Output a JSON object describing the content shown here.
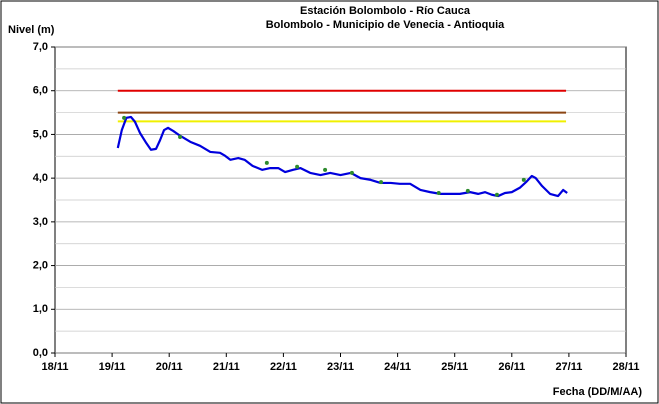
{
  "chart_data": {
    "type": "line",
    "title": "Estación Bolombolo - Río Cauca",
    "subtitle": "Bolombolo - Municipio de Venecia - Antioquia",
    "y_label": "Nivel (m)",
    "x_label": "Fecha (DD/M/AA)",
    "xlim": [
      18,
      28
    ],
    "xticks": [
      {
        "value": 18,
        "label": "18/11"
      },
      {
        "value": 19,
        "label": "19/11"
      },
      {
        "value": 20,
        "label": "20/11"
      },
      {
        "value": 21,
        "label": "21/11"
      },
      {
        "value": 22,
        "label": "22/11"
      },
      {
        "value": 23,
        "label": "23/11"
      },
      {
        "value": 24,
        "label": "24/11"
      },
      {
        "value": 25,
        "label": "25/11"
      },
      {
        "value": 26,
        "label": "26/11"
      },
      {
        "value": 27,
        "label": "27/11"
      },
      {
        "value": 28,
        "label": "28/11"
      }
    ],
    "ylim": [
      0,
      7
    ],
    "yticks": [
      {
        "value": 0,
        "label": "0,0"
      },
      {
        "value": 1,
        "label": "1,0"
      },
      {
        "value": 2,
        "label": "2,0"
      },
      {
        "value": 3,
        "label": "3,0"
      },
      {
        "value": 4,
        "label": "4,0"
      },
      {
        "value": 5,
        "label": "5,0"
      },
      {
        "value": 6,
        "label": "6,0"
      },
      {
        "value": 7,
        "label": "7,0"
      }
    ],
    "yminor": [
      0.5,
      1.5,
      2.5,
      3.5,
      4.5,
      5.5,
      6.5
    ],
    "grid": true,
    "reference_lines": [
      {
        "value": 6.0,
        "color": "#e00000",
        "x": [
          19.1,
          26.95
        ]
      },
      {
        "value": 5.5,
        "color": "#8b4513",
        "x": [
          19.1,
          26.95
        ]
      },
      {
        "value": 5.3,
        "color": "#f0f000",
        "x": [
          19.1,
          26.95
        ]
      }
    ],
    "series": [
      {
        "style": "line",
        "color": "#0000dd",
        "x": [
          19.1,
          19.17,
          19.25,
          19.33,
          19.4,
          19.49,
          19.6,
          19.68,
          19.77,
          19.84,
          19.91,
          19.98,
          20.07,
          20.19,
          20.37,
          20.54,
          20.72,
          20.89,
          20.98,
          21.07,
          21.21,
          21.32,
          21.46,
          21.63,
          21.77,
          21.91,
          22.03,
          22.17,
          22.3,
          22.47,
          22.65,
          22.82,
          23.0,
          23.18,
          23.35,
          23.53,
          23.7,
          23.88,
          24.04,
          24.22,
          24.4,
          24.57,
          24.75,
          24.92,
          25.09,
          25.27,
          25.41,
          25.53,
          25.65,
          25.76,
          25.88,
          26.0,
          26.14,
          26.25,
          26.35,
          26.42,
          26.53,
          26.67,
          26.81,
          26.9,
          26.97
        ],
        "values": [
          4.69,
          5.1,
          5.38,
          5.4,
          5.29,
          5.03,
          4.8,
          4.65,
          4.67,
          4.87,
          5.1,
          5.15,
          5.08,
          4.97,
          4.83,
          4.74,
          4.6,
          4.58,
          4.51,
          4.42,
          4.46,
          4.42,
          4.28,
          4.19,
          4.23,
          4.23,
          4.14,
          4.19,
          4.23,
          4.12,
          4.07,
          4.12,
          4.07,
          4.12,
          4.0,
          3.96,
          3.89,
          3.89,
          3.87,
          3.87,
          3.73,
          3.68,
          3.64,
          3.64,
          3.64,
          3.68,
          3.64,
          3.68,
          3.62,
          3.59,
          3.66,
          3.68,
          3.78,
          3.91,
          4.05,
          4.0,
          3.82,
          3.64,
          3.59,
          3.73,
          3.66
        ]
      },
      {
        "style": "points",
        "color": "#2e8b2e",
        "x": [
          19.21,
          20.19,
          21.71,
          22.24,
          22.73,
          23.2,
          23.71,
          24.72,
          25.23,
          25.74,
          26.21
        ],
        "values": [
          5.38,
          4.94,
          4.35,
          4.26,
          4.19,
          4.12,
          3.91,
          3.66,
          3.71,
          3.62,
          3.96
        ]
      }
    ]
  }
}
